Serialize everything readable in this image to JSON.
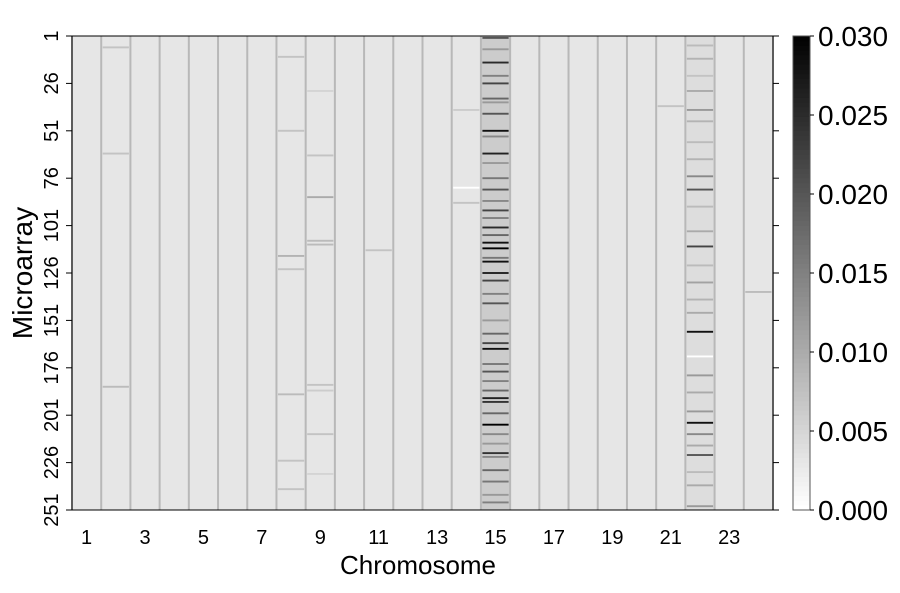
{
  "chart_data": {
    "type": "heatmap",
    "xlabel": "Chromosome",
    "ylabel": "Microarray",
    "categories": [
      1,
      null,
      3,
      null,
      5,
      null,
      7,
      null,
      9,
      null,
      11,
      null,
      13,
      null,
      15,
      null,
      17,
      null,
      19,
      null,
      21,
      null,
      23,
      null
    ],
    "ylim": [
      1,
      251
    ],
    "yticks": [
      1,
      26,
      51,
      76,
      101,
      126,
      151,
      176,
      201,
      226,
      251
    ],
    "zlim": [
      0,
      0.03
    ],
    "zticks": [
      {
        "value": 0,
        "label": "0.000"
      },
      {
        "value": 0.005,
        "label": "0.005"
      },
      {
        "value": 0.01,
        "label": "0.010"
      },
      {
        "value": 0.015,
        "label": "0.015"
      },
      {
        "value": 0.02,
        "label": "0.020"
      },
      {
        "value": 0.025,
        "label": "0.025"
      },
      {
        "value": 0.03,
        "label": "0.030"
      }
    ],
    "columns": [
      {
        "base": 0.003,
        "rows": [],
        "values": []
      },
      {
        "base": 0.003,
        "rows": [
          7,
          63,
          186
        ],
        "values": [
          0.007,
          0.007,
          0.008
        ]
      },
      {
        "base": 0.003,
        "rows": [],
        "values": []
      },
      {
        "base": 0.003,
        "rows": [],
        "values": []
      },
      {
        "base": 0.003,
        "rows": [],
        "values": []
      },
      {
        "base": 0.003,
        "rows": [],
        "values": []
      },
      {
        "base": 0.003,
        "rows": [],
        "values": []
      },
      {
        "base": 0.003,
        "rows": [
          12,
          51,
          117,
          124,
          190,
          225,
          240
        ],
        "values": [
          0.007,
          0.007,
          0.009,
          0.007,
          0.008,
          0.007,
          0.007
        ]
      },
      {
        "base": 0.003,
        "rows": [
          30,
          64,
          86,
          109,
          111,
          185,
          188,
          211,
          232
        ],
        "values": [
          0.005,
          0.007,
          0.01,
          0.008,
          0.008,
          0.007,
          0.006,
          0.007,
          0.005
        ]
      },
      {
        "base": 0.003,
        "rows": [],
        "values": []
      },
      {
        "base": 0.003,
        "rows": [
          114
        ],
        "values": [
          0.007
        ]
      },
      {
        "base": 0.003,
        "rows": [],
        "values": []
      },
      {
        "base": 0.003,
        "rows": [],
        "values": []
      },
      {
        "base": 0.003,
        "rows": [
          40,
          81,
          89
        ],
        "values": [
          0.006,
          0.0,
          0.007
        ]
      },
      {
        "base": 0.006,
        "rows": [
          2,
          8,
          15,
          22,
          26,
          34,
          36,
          42,
          51,
          54,
          63,
          68,
          76,
          82,
          88,
          93,
          97,
          102,
          106,
          110,
          113,
          118,
          120,
          126,
          130,
          137,
          142,
          151,
          158,
          163,
          166,
          174,
          178,
          183,
          188,
          192,
          194,
          200,
          206,
          211,
          216,
          221,
          223,
          230,
          236,
          243,
          247
        ],
        "values": [
          0.02,
          0.012,
          0.025,
          0.015,
          0.022,
          0.018,
          0.012,
          0.02,
          0.028,
          0.014,
          0.026,
          0.012,
          0.016,
          0.02,
          0.014,
          0.022,
          0.015,
          0.025,
          0.018,
          0.028,
          0.03,
          0.016,
          0.028,
          0.026,
          0.022,
          0.015,
          0.02,
          0.012,
          0.018,
          0.022,
          0.028,
          0.016,
          0.02,
          0.015,
          0.018,
          0.026,
          0.024,
          0.018,
          0.03,
          0.014,
          0.012,
          0.024,
          0.014,
          0.018,
          0.016,
          0.012,
          0.015
        ]
      },
      {
        "base": 0.003,
        "rows": [],
        "values": []
      },
      {
        "base": 0.003,
        "rows": [],
        "values": []
      },
      {
        "base": 0.003,
        "rows": [],
        "values": []
      },
      {
        "base": 0.003,
        "rows": [],
        "values": []
      },
      {
        "base": 0.003,
        "rows": [],
        "values": []
      },
      {
        "base": 0.003,
        "rows": [
          38
        ],
        "values": [
          0.007
        ]
      },
      {
        "base": 0.004,
        "rows": [
          6,
          13,
          22,
          30,
          40,
          46,
          57,
          66,
          75,
          82,
          91,
          104,
          112,
          122,
          131,
          140,
          147,
          157,
          170,
          180,
          189,
          199,
          205,
          211,
          217,
          222,
          231,
          238,
          249
        ],
        "values": [
          0.008,
          0.009,
          0.007,
          0.01,
          0.012,
          0.009,
          0.008,
          0.009,
          0.014,
          0.02,
          0.008,
          0.01,
          0.022,
          0.008,
          0.011,
          0.009,
          0.01,
          0.028,
          0.0,
          0.012,
          0.01,
          0.012,
          0.028,
          0.014,
          0.01,
          0.02,
          0.008,
          0.01,
          0.012
        ]
      },
      {
        "base": 0.003,
        "rows": [],
        "values": []
      },
      {
        "base": 0.003,
        "rows": [
          136
        ],
        "values": [
          0.008
        ]
      }
    ]
  }
}
